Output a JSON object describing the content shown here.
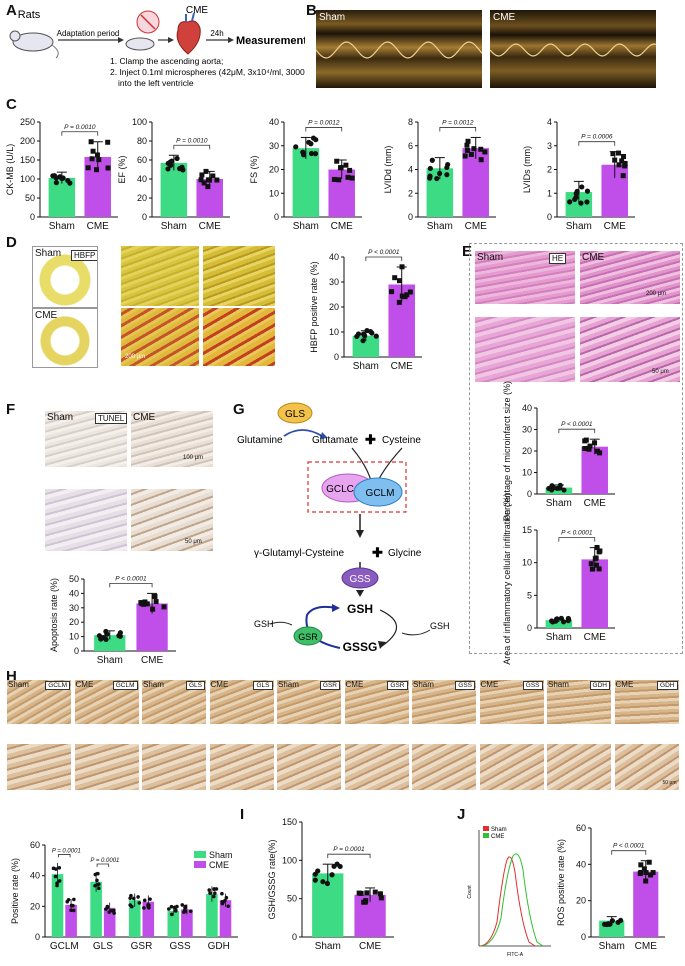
{
  "panels": {
    "A": {
      "letter": "A",
      "rats": "Rats",
      "adaptation": "Adaptation period",
      "cme": "CME",
      "time": "24h",
      "measurement": "Measurement",
      "step1": "1. Clamp the ascending aorta;",
      "step2": "2. Inject 0.1ml microspheres (42μM, 3x10⁴/ml, 3000 pieces)",
      "step2b": "into the left ventricle"
    },
    "B": {
      "letter": "B",
      "sham": "Sham",
      "cme": "CME"
    },
    "C": {
      "letter": "C"
    },
    "D": {
      "letter": "D",
      "sham": "Sham",
      "cme": "CME",
      "stain": "HBFP",
      "scale": "200 μm"
    },
    "E": {
      "letter": "E",
      "sham": "Sham",
      "cme": "CME",
      "stain": "HE",
      "scale": "200 μm",
      "scale2": "50 μm"
    },
    "F": {
      "letter": "F",
      "sham": "Sham",
      "cme": "CME",
      "stain": "TUNEL",
      "scale": "100 μm",
      "scale2": "50 μm"
    },
    "G": {
      "letter": "G",
      "gls": "GLS",
      "glutamine": "Glutamine",
      "glutamate": "Glutamate",
      "plus": "✚",
      "cysteine": "Cysteine",
      "gclc": "GCLC",
      "gclm": "GCLM",
      "ggc": "γ-Glutamyl-Cysteine",
      "glycine": "Glycine",
      "gss": "GSS",
      "gsh": "GSH",
      "gsr": "GSR",
      "gssg": "GSSG",
      "gsh_left": "GSH",
      "gsh_right": "GSH"
    },
    "H": {
      "letter": "H",
      "tiles": [
        {
          "group": "Sham",
          "stain": "GCLM"
        },
        {
          "group": "CME",
          "stain": "GCLM"
        },
        {
          "group": "Sham",
          "stain": "GLS"
        },
        {
          "group": "CME",
          "stain": "GLS"
        },
        {
          "group": "Sham",
          "stain": "GSR"
        },
        {
          "group": "CME",
          "stain": "GSR"
        },
        {
          "group": "Sham",
          "stain": "GSS"
        },
        {
          "group": "CME",
          "stain": "GSS"
        },
        {
          "group": "Sham",
          "stain": "GDH"
        },
        {
          "group": "CME",
          "stain": "GDH"
        }
      ],
      "scale": "100 μm",
      "scale2": "50 μm"
    },
    "I": {
      "letter": "I"
    },
    "J": {
      "letter": "J",
      "flow_sham": "Sham",
      "flow_cme": "CME",
      "flow_y": "Count",
      "flow_x": "FITC-A"
    }
  },
  "colors": {
    "sham": "#3ddc84",
    "cme": "#c04ee8",
    "dot": "#111111",
    "sig": "#333333"
  },
  "chart_data": [
    {
      "id": "C-ckmb",
      "type": "bar",
      "categories": [
        "Sham",
        "CME"
      ],
      "values": [
        103,
        158
      ],
      "errors": [
        15,
        40
      ],
      "ylabel": "CK-MB (U/L)",
      "ylim": [
        0,
        250
      ],
      "yticks": [
        0,
        50,
        100,
        150,
        200,
        250
      ],
      "p": "P = 0.0010"
    },
    {
      "id": "C-ef",
      "type": "bar",
      "categories": [
        "Sham",
        "CME"
      ],
      "values": [
        57,
        40
      ],
      "errors": [
        8,
        8
      ],
      "ylabel": "EF (%)",
      "ylim": [
        0,
        100
      ],
      "yticks": [
        0,
        20,
        40,
        60,
        80,
        100
      ],
      "p": "P = 0.0010"
    },
    {
      "id": "C-fs",
      "type": "bar",
      "categories": [
        "Sham",
        "CME"
      ],
      "values": [
        29,
        20
      ],
      "errors": [
        4.5,
        4
      ],
      "ylabel": "FS (%)",
      "ylim": [
        0,
        40
      ],
      "yticks": [
        0,
        10,
        20,
        30,
        40
      ],
      "p": "P = 0.0012"
    },
    {
      "id": "C-lvidd",
      "type": "bar",
      "categories": [
        "Sham",
        "CME"
      ],
      "values": [
        4.1,
        5.8
      ],
      "errors": [
        0.9,
        0.9
      ],
      "ylabel": "LVIDd (mm)",
      "ylim": [
        0,
        8
      ],
      "yticks": [
        0,
        2,
        4,
        6,
        8
      ],
      "p": "P = 0.0012"
    },
    {
      "id": "C-lvids",
      "type": "bar",
      "categories": [
        "Sham",
        "CME"
      ],
      "values": [
        1.05,
        2.2
      ],
      "errors": [
        0.45,
        0.55
      ],
      "ylabel": "LVIDs (mm)",
      "ylim": [
        0,
        4
      ],
      "yticks": [
        0,
        1,
        2,
        3,
        4
      ],
      "p": "P = 0.0006"
    },
    {
      "id": "D-hbfp",
      "type": "bar",
      "categories": [
        "Sham",
        "CME"
      ],
      "values": [
        8.5,
        29
      ],
      "errors": [
        2,
        7
      ],
      "ylabel": "HBFP positive rate (%)",
      "ylim": [
        0,
        40
      ],
      "yticks": [
        0,
        10,
        20,
        30,
        40
      ],
      "p": "P < 0.0001"
    },
    {
      "id": "E-micro",
      "type": "bar",
      "categories": [
        "Sham",
        "CME"
      ],
      "values": [
        3,
        22
      ],
      "errors": [
        1.2,
        3.5
      ],
      "ylabel": "Percentage of microinfarct size (%)",
      "ylim": [
        0,
        40
      ],
      "yticks": [
        0,
        10,
        20,
        30,
        40
      ],
      "p": "P < 0.0001"
    },
    {
      "id": "E-inflam",
      "type": "bar",
      "categories": [
        "Sham",
        "CME"
      ],
      "values": [
        1.2,
        10.5
      ],
      "errors": [
        0.3,
        1.8
      ],
      "ylabel": "Area of inflammatory cellular infiltration (%)",
      "ylim": [
        0,
        15
      ],
      "yticks": [
        0,
        5,
        10,
        15
      ],
      "p": "P < 0.0001"
    },
    {
      "id": "F-apop",
      "type": "bar",
      "categories": [
        "Sham",
        "CME"
      ],
      "values": [
        11,
        33
      ],
      "errors": [
        3,
        7
      ],
      "ylabel": "Apoptosis rate (%)",
      "ylim": [
        0,
        50
      ],
      "yticks": [
        0,
        10,
        20,
        30,
        40,
        50
      ],
      "p": "P < 0.0001"
    },
    {
      "id": "H-pos",
      "type": "bar",
      "categories": [
        "GCLM",
        "GLS",
        "GSR",
        "GSS",
        "GDH"
      ],
      "series": [
        {
          "name": "Sham",
          "values": [
            41,
            36,
            24,
            17,
            28
          ]
        },
        {
          "name": "CME",
          "values": [
            21,
            19,
            23,
            18,
            24
          ]
        }
      ],
      "ylabel": "Positive rate (%)",
      "ylim": [
        0,
        60
      ],
      "yticks": [
        0,
        20,
        40,
        60
      ],
      "sig": [
        {
          "cat": 0,
          "p": "P = 0.0001"
        },
        {
          "cat": 1,
          "p": "P = 0.0001"
        }
      ]
    },
    {
      "id": "I-ratio",
      "type": "bar",
      "categories": [
        "Sham",
        "CME"
      ],
      "values": [
        83,
        55
      ],
      "errors": [
        12,
        9
      ],
      "ylabel": "GSH/GSSG rate(%)",
      "ylim": [
        0,
        150
      ],
      "yticks": [
        0,
        50,
        100,
        150
      ],
      "p": "P = 0.0001"
    },
    {
      "id": "J-ros",
      "type": "bar",
      "categories": [
        "Sham",
        "CME"
      ],
      "values": [
        9,
        36
      ],
      "errors": [
        2.2,
        6
      ],
      "ylabel": "ROS positive rate (%)",
      "ylim": [
        0,
        60
      ],
      "yticks": [
        0,
        20,
        40,
        60
      ],
      "p": "P < 0.0001"
    }
  ]
}
